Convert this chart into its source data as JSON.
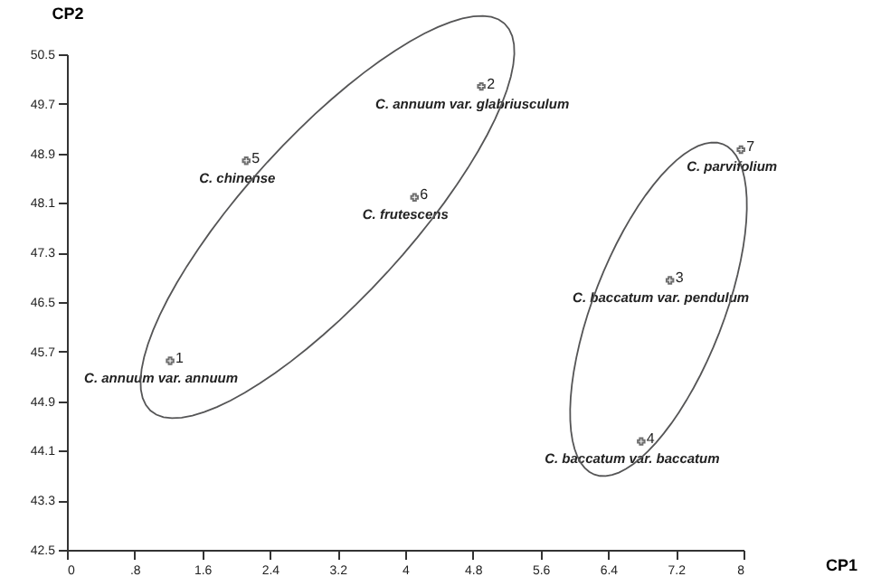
{
  "chart_data": {
    "type": "scatter",
    "xlabel": "CP1",
    "ylabel": "CP2",
    "x": [
      1.22,
      4.9,
      7.13,
      6.79,
      2.12,
      4.11,
      7.97
    ],
    "values": [
      45.55,
      49.98,
      46.85,
      44.25,
      48.78,
      48.19,
      48.96
    ],
    "color": "#333333",
    "marker": "cross",
    "grid": false,
    "legend": false,
    "xlim": [
      0,
      8
    ],
    "ylim": [
      42.5,
      50.5
    ],
    "xticks": [
      0,
      {
        "value": 0.8,
        "label": ".8"
      },
      1.6,
      2.4,
      3.2,
      4,
      4.8,
      5.6,
      6.4,
      7.2,
      8
    ],
    "yticks": [
      42.5,
      43.3,
      44.1,
      44.9,
      45.7,
      46.5,
      47.3,
      48.1,
      48.9,
      49.7,
      50.5
    ],
    "annotations": [
      {
        "text": "1",
        "x": 1.22,
        "y": 45.55
      },
      {
        "text": "C. annuum var. annuum",
        "x": 1.22,
        "y": 45.55
      },
      {
        "text": "2",
        "x": 4.9,
        "y": 49.98
      },
      {
        "text": "C. annuum var. glabriusculum",
        "x": 4.9,
        "y": 49.98
      },
      {
        "text": "3",
        "x": 7.13,
        "y": 46.85
      },
      {
        "text": "C. baccatum var. pendulum",
        "x": 7.13,
        "y": 46.85
      },
      {
        "text": "4",
        "x": 6.79,
        "y": 44.25
      },
      {
        "text": "C. baccatum var. baccatum",
        "x": 6.79,
        "y": 44.25
      },
      {
        "text": "5",
        "x": 2.12,
        "y": 48.78
      },
      {
        "text": "C. chinense",
        "x": 2.12,
        "y": 48.78
      },
      {
        "text": "6",
        "x": 4.11,
        "y": 48.19
      },
      {
        "text": "C. frutescens",
        "x": 4.11,
        "y": 48.19
      },
      {
        "text": "7",
        "x": 7.97,
        "y": 48.96
      },
      {
        "text": "C. parvifolium",
        "x": 7.97,
        "y": 48.96
      }
    ]
  }
}
